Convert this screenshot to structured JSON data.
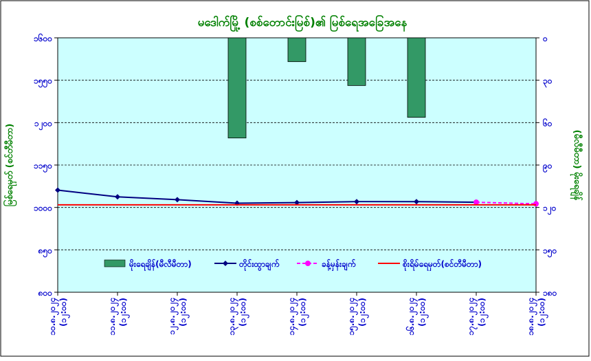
{
  "chart_data": {
    "type": "bar+line",
    "title": "မဒေါက်မြို့ (စစ်တောင်းမြစ်)၏ မြစ်ရေအခြေအနေ",
    "ylabel_left": "မြစ်ရေမှတ် (စင်တီမီတာ)",
    "ylabel_right": "(မီလီမီတာ) မိုးရေချိန်",
    "ylim_left": [
      800,
      1600
    ],
    "ylim_right": [
      0,
      160
    ],
    "yticks_left": [
      "၁၆၀၀",
      "၁၅၅၀",
      "၁၂၀၀",
      "၁၁၅၀",
      "၁၀၀၀",
      "၈၅၀",
      "၈၀၀"
    ],
    "yticks_right": [
      "၀",
      "၃၀",
      "၆၀",
      "၉၀",
      "၁၂၀",
      "၁၅၀",
      "၁၈၀"
    ],
    "categories": [
      {
        "date": "၁၀.၈.၂၀၂၄",
        "time": "(၁၂:၀၀)"
      },
      {
        "date": "၁၁.၈.၂၀၂၄",
        "time": "(၁၂:၀၀)"
      },
      {
        "date": "၁၂.၈.၂၀၂၄",
        "time": "(၁၂:၀၀)"
      },
      {
        "date": "၁၃.၈.၂၀၂၄",
        "time": "(၁၂:၀၀)"
      },
      {
        "date": "၁၄.၈.၂၀၂၄",
        "time": "(၁၂:၀၀)"
      },
      {
        "date": "၁၅.၈.၂၀၂၄",
        "time": "(၁၂:၀၀)"
      },
      {
        "date": "၁၆.၈.၂၀၂၄",
        "time": "(၁၂:၀၀)"
      },
      {
        "date": "၁၇.၈.၂၀၂၄",
        "time": "(၁၂:၀၀)"
      },
      {
        "date": "၁၈.၈.၂၀၂၄",
        "time": "(၁၂:၀၀)"
      }
    ],
    "series": [
      {
        "name": "မိုးရေချိန်(မီလီမီတာ)",
        "kind": "bar",
        "axis": "right",
        "color": "#339966",
        "values": [
          0,
          0,
          0,
          63,
          15,
          30,
          50,
          null,
          null
        ]
      },
      {
        "name": "တိုင်းထွာချက်",
        "kind": "line",
        "axis": "left",
        "color": "#000080",
        "values": [
          1121,
          1100,
          1091,
          1080,
          1082,
          1085,
          1085,
          1083,
          null
        ]
      },
      {
        "name": "ခန့်မှန်းချက်",
        "kind": "line-dashed",
        "axis": "left",
        "color": "#ff00ff",
        "values": [
          null,
          null,
          null,
          null,
          null,
          null,
          null,
          1083,
          1078
        ]
      },
      {
        "name": "စိုးရိမ်ရေမှတ်(စင်တီမီတာ)",
        "kind": "hline",
        "axis": "left",
        "color": "#ff0000",
        "value": 1075
      }
    ],
    "grid": true,
    "legend": "inside-bottom",
    "colors": {
      "plot_bg": "#ccffff",
      "text": "#0000cc",
      "title": "#008000",
      "axis_title": "#008000"
    }
  }
}
